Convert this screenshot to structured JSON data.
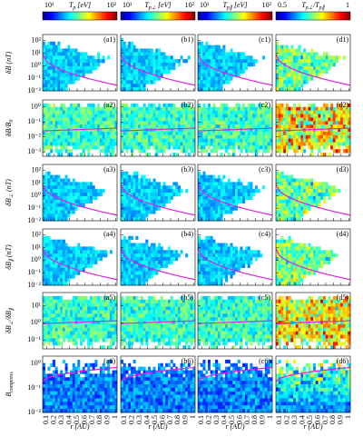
{
  "figure": {
    "colorbars": [
      {
        "label": [
          {
            "t": "T"
          },
          {
            "t": "p",
            "sub": true
          },
          {
            "t": " [eV]"
          }
        ],
        "ticks": [
          "10¹",
          "10²"
        ]
      },
      {
        "label": [
          {
            "t": "T"
          },
          {
            "t": "p⊥",
            "sub": true
          },
          {
            "t": " [eV]"
          }
        ],
        "ticks": [
          "10¹",
          "10²"
        ]
      },
      {
        "label": [
          {
            "t": "T"
          },
          {
            "t": "p∥",
            "sub": true
          },
          {
            "t": " [eV]"
          }
        ],
        "ticks": [
          "10¹",
          "10²"
        ]
      },
      {
        "label": [
          {
            "t": "T"
          },
          {
            "t": "p⊥",
            "sub": true
          },
          {
            "t": "/T"
          },
          {
            "t": "p∥",
            "sub": true
          }
        ],
        "ticks": [
          "0.5",
          "1"
        ]
      }
    ],
    "xlabel": "r (AU)",
    "xlim": [
      0.05,
      1.02
    ],
    "xticks": [
      0.1,
      0.2,
      0.3,
      0.4,
      0.5,
      0.6,
      0.7,
      0.8,
      0.9,
      1
    ],
    "ylog": true,
    "rows": [
      {
        "ylabel": [
          {
            "t": "δB (nT)"
          }
        ],
        "ylim": [
          0.01,
          300
        ],
        "yticks": [
          {
            "value": 100,
            "label": "10²"
          },
          {
            "value": 10,
            "label": "10¹"
          },
          {
            "value": 1,
            "label": "10⁰"
          },
          {
            "value": 0.1,
            "label": "10⁻¹"
          },
          {
            "value": 0.01,
            "label": "10⁻²"
          }
        ],
        "panels": [
          "(a1)",
          "(b1)",
          "(c1)",
          "(d1)"
        ]
      },
      {
        "ylabel": [
          {
            "t": "δB/B"
          },
          {
            "t": "0",
            "sub": true
          }
        ],
        "ylim": [
          0.0005,
          3
        ],
        "yticks": [
          {
            "value": 1,
            "label": "10⁰"
          },
          {
            "value": 0.1,
            "label": "10⁻¹"
          },
          {
            "value": 0.01,
            "label": "10⁻²"
          },
          {
            "value": 0.001,
            "label": "10⁻³"
          }
        ],
        "panels": [
          "(a2)",
          "(b2)",
          "(c2)",
          "(d2)"
        ]
      },
      {
        "ylabel": [
          {
            "t": "δB"
          },
          {
            "t": "⊥",
            "sub": true
          },
          {
            "t": " (nT)"
          }
        ],
        "ylim": [
          0.01,
          300
        ],
        "yticks": [
          {
            "value": 100,
            "label": "10²"
          },
          {
            "value": 10,
            "label": "10¹"
          },
          {
            "value": 1,
            "label": "10⁰"
          },
          {
            "value": 0.1,
            "label": "10⁻¹"
          },
          {
            "value": 0.01,
            "label": "10⁻²"
          }
        ],
        "panels": [
          "(a3)",
          "(b3)",
          "(c3)",
          "(d3)"
        ]
      },
      {
        "ylabel": [
          {
            "t": "δB"
          },
          {
            "t": "∥",
            "sub": true
          },
          {
            "t": " (nT)"
          }
        ],
        "ylim": [
          0.01,
          300
        ],
        "yticks": [
          {
            "value": 100,
            "label": "10²"
          },
          {
            "value": 10,
            "label": "10¹"
          },
          {
            "value": 1,
            "label": "10⁰"
          },
          {
            "value": 0.1,
            "label": "10⁻¹"
          },
          {
            "value": 0.01,
            "label": "10⁻²"
          }
        ],
        "panels": [
          "(a4)",
          "(b4)",
          "(c4)",
          "(d4)"
        ]
      },
      {
        "ylabel": [
          {
            "t": "δB"
          },
          {
            "t": "⊥",
            "sub": true
          },
          {
            "t": "/δB"
          },
          {
            "t": "∥",
            "sub": true
          }
        ],
        "ylim": [
          0.03,
          60
        ],
        "yticks": [
          {
            "value": 10,
            "label": "10¹"
          },
          {
            "value": 1,
            "label": "10⁰"
          },
          {
            "value": 0.1,
            "label": "10⁻¹"
          }
        ],
        "panels": [
          "(a5)",
          "(b5)",
          "(c5)",
          "(d5)"
        ]
      },
      {
        "ylabel": [
          {
            "t": "B"
          },
          {
            "t": "compress",
            "sub": true
          }
        ],
        "ylim": [
          0.01,
          2
        ],
        "yticks": [
          {
            "value": 1,
            "label": "10⁰"
          },
          {
            "value": 0.1,
            "label": "10⁻¹"
          },
          {
            "value": 0.01,
            "label": "10⁻²"
          }
        ],
        "panels": [
          "(a6)",
          "(b6)",
          "(c6)",
          "(d6)"
        ]
      }
    ]
  }
}
